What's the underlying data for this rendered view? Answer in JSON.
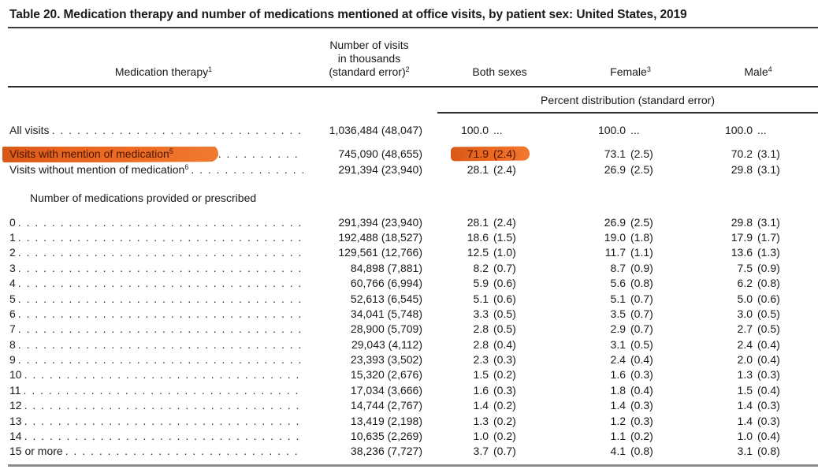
{
  "title": "Table 20. Medication therapy and number of medications mentioned at office visits, by patient sex: United States, 2019",
  "table": {
    "col_headers": {
      "therapy": {
        "text": "Medication therapy",
        "sup": "1"
      },
      "visits": {
        "lines": [
          "Number of visits",
          "in thousands",
          "(standard error)"
        ],
        "sup": "2"
      },
      "both": {
        "text": "Both sexes",
        "sup": ""
      },
      "female": {
        "text": "Female",
        "sup": "3"
      },
      "male": {
        "text": "Male",
        "sup": "4"
      }
    },
    "span_header": "Percent distribution (standard error)",
    "rows": [
      {
        "label": "All visits",
        "sup": "",
        "visits": "1,036,484 (48,047)",
        "both": [
          "100.0",
          "..."
        ],
        "female": [
          "100.0",
          "..."
        ],
        "male": [
          "100.0",
          "..."
        ],
        "hl": false
      },
      {
        "label": "Visits with mention of medication",
        "sup": "5",
        "visits": "745,090 (48,655)",
        "both": [
          "71.9",
          "(2.4)"
        ],
        "female": [
          "73.1",
          "(2.5)"
        ],
        "male": [
          "70.2",
          "(3.1)"
        ],
        "hl": true
      },
      {
        "label": "Visits without mention of medication",
        "sup": "6",
        "visits": "291,394 (23,940)",
        "both": [
          "28.1",
          "(2.4)"
        ],
        "female": [
          "26.9",
          "(2.5)"
        ],
        "male": [
          "29.8",
          "(3.1)"
        ],
        "hl": false
      },
      {
        "type": "section",
        "label": "Number of medications provided or prescribed"
      },
      {
        "label": "0",
        "sup": "",
        "visits": "291,394 (23,940)",
        "both": [
          "28.1",
          "(2.4)"
        ],
        "female": [
          "26.9",
          "(2.5)"
        ],
        "male": [
          "29.8",
          "(3.1)"
        ],
        "hl": false
      },
      {
        "label": "1",
        "sup": "",
        "visits": "192,488 (18,527)",
        "both": [
          "18.6",
          "(1.5)"
        ],
        "female": [
          "19.0",
          "(1.8)"
        ],
        "male": [
          "17.9",
          "(1.7)"
        ],
        "hl": false
      },
      {
        "label": "2",
        "sup": "",
        "visits": "129,561 (12,766)",
        "both": [
          "12.5",
          "(1.0)"
        ],
        "female": [
          "11.7",
          "(1.1)"
        ],
        "male": [
          "13.6",
          "(1.3)"
        ],
        "hl": false
      },
      {
        "label": "3",
        "sup": "",
        "visits": "84,898 (7,881)",
        "both": [
          "8.2",
          "(0.7)"
        ],
        "female": [
          "8.7",
          "(0.9)"
        ],
        "male": [
          "7.5",
          "(0.9)"
        ],
        "hl": false
      },
      {
        "label": "4",
        "sup": "",
        "visits": "60,766 (6,994)",
        "both": [
          "5.9",
          "(0.6)"
        ],
        "female": [
          "5.6",
          "(0.8)"
        ],
        "male": [
          "6.2",
          "(0.8)"
        ],
        "hl": false
      },
      {
        "label": "5",
        "sup": "",
        "visits": "52,613 (6,545)",
        "both": [
          "5.1",
          "(0.6)"
        ],
        "female": [
          "5.1",
          "(0.7)"
        ],
        "male": [
          "5.0",
          "(0.6)"
        ],
        "hl": false
      },
      {
        "label": "6",
        "sup": "",
        "visits": "34,041 (5,748)",
        "both": [
          "3.3",
          "(0.5)"
        ],
        "female": [
          "3.5",
          "(0.7)"
        ],
        "male": [
          "3.0",
          "(0.5)"
        ],
        "hl": false
      },
      {
        "label": "7",
        "sup": "",
        "visits": "28,900 (5,709)",
        "both": [
          "2.8",
          "(0.5)"
        ],
        "female": [
          "2.9",
          "(0.7)"
        ],
        "male": [
          "2.7",
          "(0.5)"
        ],
        "hl": false
      },
      {
        "label": "8",
        "sup": "",
        "visits": "29,043 (4,112)",
        "both": [
          "2.8",
          "(0.4)"
        ],
        "female": [
          "3.1",
          "(0.5)"
        ],
        "male": [
          "2.4",
          "(0.4)"
        ],
        "hl": false
      },
      {
        "label": "9",
        "sup": "",
        "visits": "23,393 (3,502)",
        "both": [
          "2.3",
          "(0.3)"
        ],
        "female": [
          "2.4",
          "(0.4)"
        ],
        "male": [
          "2.0",
          "(0.4)"
        ],
        "hl": false
      },
      {
        "label": "10",
        "sup": "",
        "visits": "15,320 (2,676)",
        "both": [
          "1.5",
          "(0.2)"
        ],
        "female": [
          "1.6",
          "(0.3)"
        ],
        "male": [
          "1.3",
          "(0.3)"
        ],
        "hl": false
      },
      {
        "label": "11",
        "sup": "",
        "visits": "17,034 (3,666)",
        "both": [
          "1.6",
          "(0.3)"
        ],
        "female": [
          "1.8",
          "(0.4)"
        ],
        "male": [
          "1.5",
          "(0.4)"
        ],
        "hl": false
      },
      {
        "label": "12",
        "sup": "",
        "visits": "14,744 (2,767)",
        "both": [
          "1.4",
          "(0.2)"
        ],
        "female": [
          "1.4",
          "(0.3)"
        ],
        "male": [
          "1.4",
          "(0.3)"
        ],
        "hl": false
      },
      {
        "label": "13",
        "sup": "",
        "visits": "13,419 (2,198)",
        "both": [
          "1.3",
          "(0.2)"
        ],
        "female": [
          "1.2",
          "(0.3)"
        ],
        "male": [
          "1.4",
          "(0.3)"
        ],
        "hl": false
      },
      {
        "label": "14",
        "sup": "",
        "visits": "10,635 (2,269)",
        "both": [
          "1.0",
          "(0.2)"
        ],
        "female": [
          "1.1",
          "(0.2)"
        ],
        "male": [
          "1.0",
          "(0.4)"
        ],
        "hl": false
      },
      {
        "label": "15 or more",
        "sup": "",
        "visits": "38,236 (7,727)",
        "both": [
          "3.7",
          "(0.7)"
        ],
        "female": [
          "4.1",
          "(0.8)"
        ],
        "male": [
          "3.1",
          "(0.8)"
        ],
        "hl": false
      }
    ]
  },
  "annotations": {
    "highlight_color": "#e8651f",
    "highlighted_text": [
      "Visits with mention of medication5",
      "71.9 (2.4)"
    ]
  }
}
